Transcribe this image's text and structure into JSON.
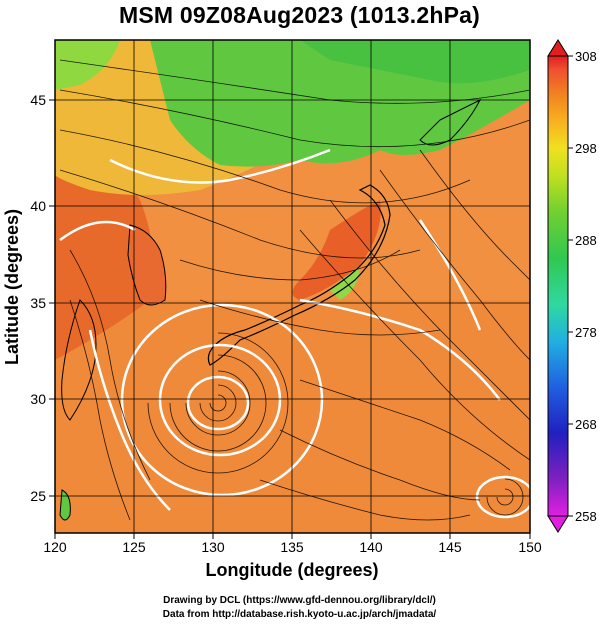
{
  "title": "MSM 09Z08Aug2023 (1013.2hPa)",
  "map": {
    "x_axis": {
      "label": "Longitude (degrees)",
      "range": [
        120,
        150
      ],
      "ticks": [
        "120",
        "125",
        "130",
        "135",
        "140",
        "145",
        "150"
      ]
    },
    "y_axis": {
      "label": "Latitude  (degrees)",
      "range": [
        22.5,
        47.5
      ],
      "ticks": [
        "25",
        "30",
        "35",
        "40",
        "45"
      ]
    },
    "field": "temperature shaded with streamlines",
    "colorbar": {
      "ticks": [
        "308",
        "298",
        "288",
        "278",
        "268",
        "258"
      ],
      "min": 258,
      "max": 308,
      "colors": [
        "#e020e0",
        "#8020c0",
        "#2020c0",
        "#2060e0",
        "#20b0e0",
        "#30d8a0",
        "#30c850",
        "#70d030",
        "#c0e020",
        "#f0e020",
        "#f8b020",
        "#f08020",
        "#f05030",
        "#e02020"
      ]
    },
    "background_colors": {
      "warm": "#f09040",
      "hot": "#e86028",
      "mild": "#f0c040",
      "cool": "#60c840",
      "land_outline": "#000000",
      "isoline": "#ffffff"
    }
  },
  "credits": {
    "line1": "Drawing by DCL (https://www.gfd-dennou.org/library/dcl/)",
    "line2": "Data from http://database.rish.kyoto-u.ac.jp/arch/jmadata/"
  }
}
